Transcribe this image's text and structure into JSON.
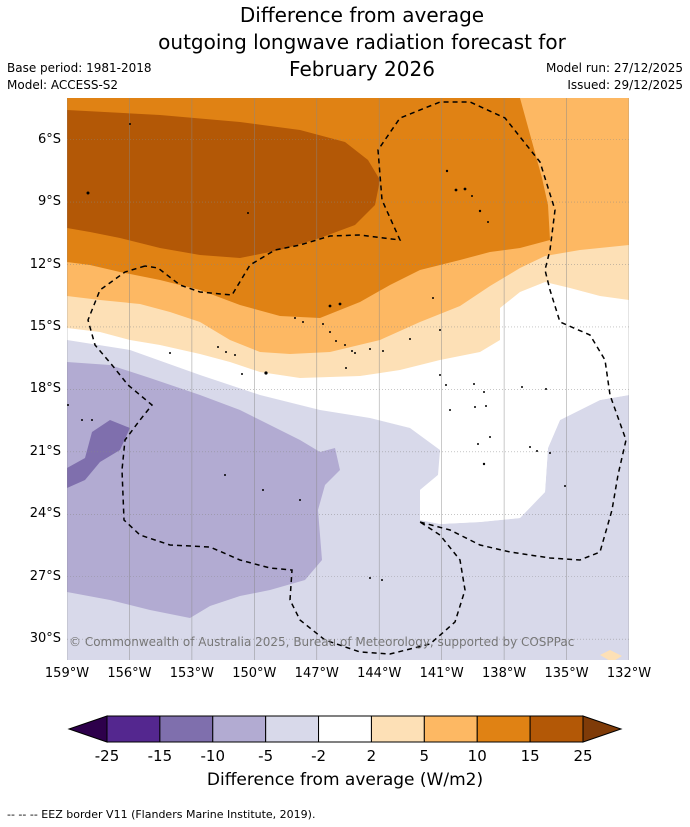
{
  "title": {
    "line1": "Difference from average",
    "line2": "outgoing longwave radiation forecast for",
    "line3": "February 2026"
  },
  "meta": {
    "base_period": "Base period: 1981-2018",
    "model": "Model: ACCESS-S2",
    "model_run": "Model run: 27/12/2025",
    "issued": "Issued: 29/12/2025"
  },
  "map": {
    "latitude_labels": [
      "6°S",
      "9°S",
      "12°S",
      "15°S",
      "18°S",
      "21°S",
      "24°S",
      "27°S",
      "30°S"
    ],
    "longitude_labels": [
      "159°W",
      "156°W",
      "153°W",
      "150°W",
      "147°W",
      "144°W",
      "141°W",
      "138°W",
      "135°W",
      "132°W"
    ],
    "extent": {
      "lon_min": -159,
      "lon_max": -132,
      "lat_top": -4,
      "lat_bottom": -31
    },
    "copyright": "© Commonwealth of Australia 2025, Bureau of Meteorology, supported by COSPPac"
  },
  "colorbar": {
    "ticks": [
      "-25",
      "-15",
      "-10",
      "-5",
      "-2",
      "2",
      "5",
      "10",
      "15",
      "25"
    ],
    "colors": [
      "#54278f",
      "#7f6fad",
      "#b2abd2",
      "#d8d9ea",
      "#ffffff",
      "#fde0b6",
      "#fdb863",
      "#e08214",
      "#b35806"
    ],
    "under_color": "#2d004b",
    "over_color": "#7f3b08",
    "label": "Difference from average (W/m2)"
  },
  "footer": "--  --  -- EEZ border V11 (Flanders Marine Institute, 2019)."
}
